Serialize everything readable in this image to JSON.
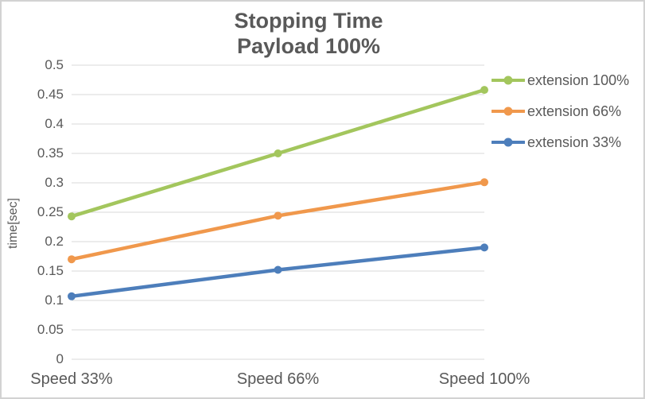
{
  "window": {
    "background": "#ffffff",
    "border_color": "#d2d2d2",
    "text_color": "#595959",
    "gridline_color": "#d9d9d9"
  },
  "chart_data": {
    "type": "line",
    "title": "Stopping Time",
    "subtitle": "Payload 100%",
    "ylabel": "time[sec]",
    "xlabel": "",
    "categories": [
      "Speed 33%",
      "Speed 66%",
      "Speed 100%"
    ],
    "series": [
      {
        "name": "extension 100%",
        "color": "#a3c65d",
        "values": [
          0.243,
          0.35,
          0.458
        ]
      },
      {
        "name": "extension 66%",
        "color": "#f0984c",
        "values": [
          0.17,
          0.244,
          0.301
        ]
      },
      {
        "name": "extension 33%",
        "color": "#4d7ebb",
        "values": [
          0.107,
          0.152,
          0.19
        ]
      }
    ],
    "ylim": [
      0,
      0.5
    ],
    "ytick_step": 0.05,
    "ytick_labels": [
      "0.5",
      "0.45",
      "0.4",
      "0.35",
      "0.3",
      "0.25",
      "0.2",
      "0.15",
      "0.1",
      "0.05",
      "0"
    ],
    "grid": true,
    "legend_position": "right",
    "marker": "circle"
  }
}
